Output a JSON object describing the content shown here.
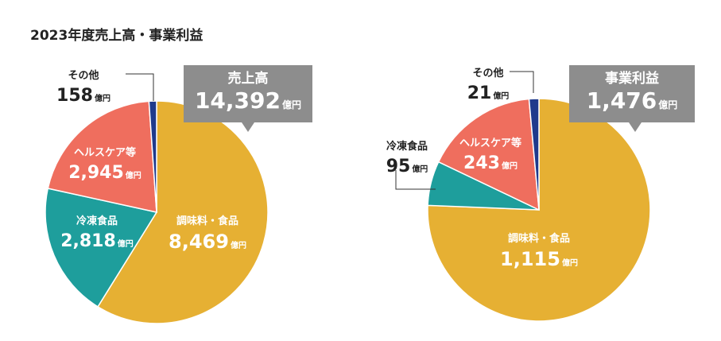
{
  "title": "2023年度売上高・事業利益",
  "unit": "億円",
  "colors": {
    "food": "#E6B033",
    "frozen": "#1E9E9C",
    "health": "#EF6E5E",
    "other": "#1F3A8C",
    "callout_bg": "#8D8D8D"
  },
  "chart_data": [
    {
      "type": "pie",
      "title": "売上高",
      "total": "14,392",
      "slices": [
        {
          "label": "調味料・食品",
          "value": 8469,
          "value_text": "8,469"
        },
        {
          "label": "冷凍食品",
          "value": 2818,
          "value_text": "2,818"
        },
        {
          "label": "ヘルスケア等",
          "value": 2945,
          "value_text": "2,945"
        },
        {
          "label": "その他",
          "value": 158,
          "value_text": "158"
        }
      ]
    },
    {
      "type": "pie",
      "title": "事業利益",
      "total": "1,476",
      "slices": [
        {
          "label": "調味料・食品",
          "value": 1115,
          "value_text": "1,115"
        },
        {
          "label": "冷凍食品",
          "value": 95,
          "value_text": "95"
        },
        {
          "label": "ヘルスケア等",
          "value": 243,
          "value_text": "243"
        },
        {
          "label": "その他",
          "value": 21,
          "value_text": "21"
        }
      ]
    }
  ]
}
